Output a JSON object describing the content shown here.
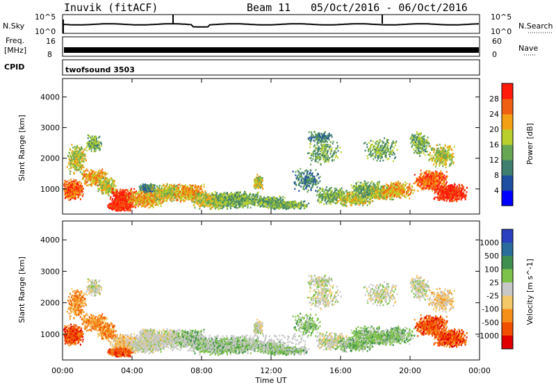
{
  "header": {
    "station": "Inuvik (fitACF)",
    "beam": "Beam 11",
    "date_range": "05/Oct/2016 - 06/Oct/2016"
  },
  "strips": {
    "nsky_label": "N.Sky",
    "nsky_top": "10^5",
    "nsky_bottom": "10^0",
    "nsearch_label": "N.Search",
    "nsearch_top": "10^5",
    "nsearch_bottom": "10^0",
    "freq_label_1": "Freq.",
    "freq_label_2": "[MHz]",
    "freq_top": "16",
    "freq_bottom": "8",
    "nave_label": "Nave",
    "nave_top": "60",
    "nave_bottom": "0",
    "cpid_label": "CPID",
    "cpid_value": "twofsound 3503"
  },
  "xaxis": {
    "title": "Time UT",
    "ticks": [
      "00:00",
      "04:00",
      "08:00",
      "12:00",
      "16:00",
      "20:00",
      "00:00"
    ]
  },
  "colors": {
    "power": [
      "#0000ff",
      "#1f4fa0",
      "#3f7f6f",
      "#67a653",
      "#b9d02c",
      "#f3a014",
      "#f06012",
      "#ff1a0a"
    ],
    "velocity": [
      "#e00000",
      "#f05000",
      "#f58f1a",
      "#f3c868",
      "#c8c8c8",
      "#7dc24a",
      "#3f8f50",
      "#2a6c9c",
      "#2a40c0"
    ]
  },
  "chart_data": [
    {
      "type": "heatmap",
      "title": "Power",
      "ylabel": "Slant Range [km]",
      "xlabel": "",
      "x_ticks": [
        "00:00",
        "04:00",
        "08:00",
        "12:00",
        "16:00",
        "20:00",
        "00:00"
      ],
      "y_ticks": [
        "1000",
        "2000",
        "3000",
        "4000"
      ],
      "ylim": [
        180,
        4600
      ],
      "colorbar_label": "Power [dB]",
      "colorbar_ticks": [
        "4",
        "8",
        "12",
        "16",
        "20",
        "24",
        "28"
      ],
      "colorbar_range": [
        0,
        32
      ]
    },
    {
      "type": "heatmap",
      "title": "Velocity",
      "ylabel": "Slant Range [km]",
      "xlabel": "Time UT",
      "x_ticks": [
        "00:00",
        "04:00",
        "08:00",
        "12:00",
        "16:00",
        "20:00",
        "00:00"
      ],
      "y_ticks": [
        "1000",
        "2000",
        "3000",
        "4000"
      ],
      "ylim": [
        180,
        4600
      ],
      "colorbar_label": "Velocity [m s^-1]",
      "colorbar_ticks": [
        "1000",
        "500",
        "100",
        "25",
        "-25",
        "-100",
        "-500",
        "-1000"
      ]
    }
  ]
}
